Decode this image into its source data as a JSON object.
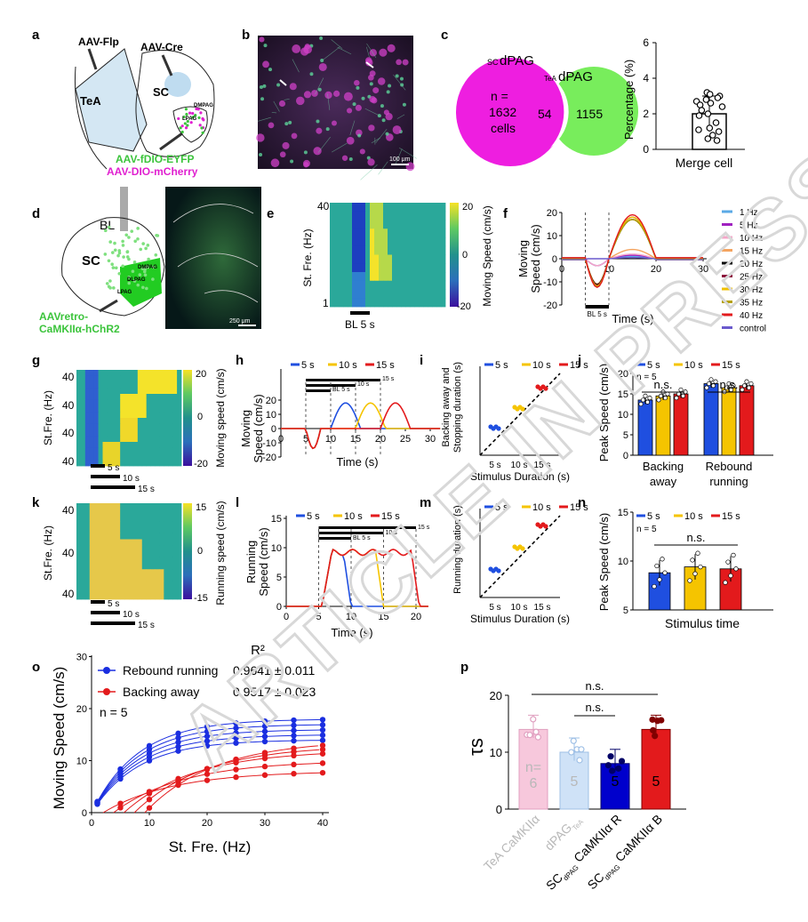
{
  "panels": {
    "a": {
      "label": "a",
      "flp": "AAV-Flp",
      "cre": "AAV-Cre",
      "tea": "TeA",
      "sc": "SC",
      "dmpag": "DMPAG",
      "lpag": "LPAG",
      "eyfp": "AAV-fDIO-EYFP",
      "mcherry": "AAV-DIO-mCherry"
    },
    "b": {
      "label": "b",
      "scale": "100 μm"
    },
    "c": {
      "label": "c",
      "sc_sub": "SC",
      "sc_name": "dPAG",
      "tea_sub": "TeA",
      "tea_name": "dPAG",
      "n_line1": "n =",
      "n_line2": "1632",
      "n_line3": "cells",
      "overlap": "54",
      "right_count": "1155",
      "ylabel": "Percentage (%)",
      "xlabel": "Merge cell",
      "yticks": [
        "0",
        "2",
        "4",
        "6"
      ],
      "bar_mean": 2.0,
      "bar_sd": 1.0,
      "ymax": 6,
      "dots": [
        3.2,
        3.0,
        3.1,
        2.9,
        2.6,
        2.8,
        2.7,
        2.5,
        2.4,
        2.0,
        1.9,
        1.5,
        1.2,
        1.0,
        1.1,
        0.8,
        0.5,
        0.6,
        2.2
      ]
    },
    "d": {
      "label": "d",
      "bl": "BL",
      "sc": "SC",
      "dmpag": "DMPAG",
      "dlpag": "DLPAG",
      "lpag": "LPAG",
      "virus1": "AAVretro-",
      "virus2": "CaMKIIα-hChR2",
      "scale": "250 μm"
    },
    "e": {
      "label": "e",
      "top": "40",
      "bottom": "1",
      "ylabel": "St. Fre. (Hz)",
      "stim": "BL 5 s",
      "cbar_label": "Moving Speed (cm/s)",
      "cbar_ticks": [
        "20",
        "0",
        "-20"
      ]
    },
    "f": {
      "label": "f",
      "ylabel1": "Moving",
      "ylabel2": "Speed (cm/s)",
      "xlabel": "Time (s)",
      "stim": "BL 5 s",
      "yticks": [
        "20",
        "10",
        "0",
        "-10",
        "-20"
      ],
      "xticks": [
        "0",
        "10",
        "20",
        "30"
      ],
      "legend": [
        {
          "name": "1 Hz",
          "color": "#5aa9e6"
        },
        {
          "name": "5 Hz",
          "color": "#a020c0"
        },
        {
          "name": "10 Hz",
          "color": "#f4a6c8"
        },
        {
          "name": "15 Hz",
          "color": "#f4a460"
        },
        {
          "name": "20 Hz",
          "color": "#000000"
        },
        {
          "name": "25 Hz",
          "color": "#8b0a3a"
        },
        {
          "name": "30 Hz",
          "color": "#f0c000"
        },
        {
          "name": "35 Hz",
          "color": "#b5a000"
        },
        {
          "name": "40 Hz",
          "color": "#e31a1c"
        },
        {
          "name": "control",
          "color": "#6a5acd"
        }
      ]
    },
    "g": {
      "label": "g",
      "rows": [
        "40",
        "40",
        "40",
        "40"
      ],
      "ylabel": "St.Fre. (Hz)",
      "cbar_label": "Moving speed (cm/s)",
      "cbar_ticks": [
        "20",
        "0",
        "-20"
      ],
      "durations": [
        "5 s",
        "10 s",
        "15 s"
      ]
    },
    "h": {
      "label": "h",
      "legend": [
        "5 s",
        "10 s",
        "15 s"
      ],
      "ylabel1": "Moving",
      "ylabel2": "Speed (cm/s)",
      "xlabel": "Time (s)",
      "yticks": [
        "20",
        "10",
        "0",
        "-10",
        "-20"
      ],
      "xticks": [
        "0",
        "5",
        "10",
        "15",
        "20",
        "25",
        "30"
      ],
      "stim": "BL 5 s",
      "b10": "10 s",
      "b15": "15 s"
    },
    "i": {
      "label": "i",
      "legend": [
        "5 s",
        "10 s",
        "15 s"
      ],
      "ylabel1": "Backing away and",
      "ylabel2": "Stopping duration (s)",
      "xlabel": "Stimulus Duration (s)",
      "xticks": [
        "5 s",
        "10 s",
        "15 s"
      ]
    },
    "j": {
      "label": "j",
      "legend": [
        "5 s",
        "10 s",
        "15 s"
      ],
      "ylabel": "Peak Speed (cm/s)",
      "n": "n = 5",
      "ns": "n.s.",
      "yticks": [
        "0",
        "5",
        "10",
        "15",
        "20"
      ],
      "groups": [
        "Backing",
        "away",
        "Rebound",
        "running"
      ],
      "backing": [
        13.5,
        14.5,
        15.0
      ],
      "rebound": [
        17.5,
        16.5,
        17.0
      ]
    },
    "k": {
      "label": "k",
      "rows": [
        "40",
        "40",
        "40"
      ],
      "ylabel": "St.Fre. (Hz)",
      "cbar_label": "Running speed (cm/s)",
      "cbar_ticks": [
        "15",
        "0",
        "-15"
      ],
      "durations": [
        "5 s",
        "10 s",
        "15 s"
      ]
    },
    "l": {
      "label": "l",
      "legend": [
        "5 s",
        "10 s",
        "15 s"
      ],
      "ylabel1": "Running",
      "ylabel2": "Speed (cm/s)",
      "xlabel": "Time (s)",
      "yticks": [
        "15",
        "10",
        "5",
        "0"
      ],
      "xticks": [
        "0",
        "5",
        "10",
        "15",
        "20"
      ],
      "stim": "BL 5 s",
      "b10": "10 s",
      "b15": "15 s"
    },
    "m": {
      "label": "m",
      "legend": [
        "5 s",
        "10 s",
        "15 s"
      ],
      "ylabel": "Running duration (s)",
      "xlabel": "Stimulus Duration (s)",
      "xticks": [
        "5 s",
        "10 s",
        "15 s"
      ]
    },
    "n": {
      "label": "n",
      "legend": [
        "5 s",
        "10 s",
        "15 s"
      ],
      "ylabel": "Peak Speed (cm/s)",
      "n": "n = 5",
      "ns": "n.s.",
      "yticks": [
        "5",
        "10",
        "15"
      ],
      "xlabel": "Stimulus time",
      "values": [
        8.8,
        9.4,
        9.2
      ]
    },
    "o": {
      "label": "o",
      "r2": "R²",
      "rebound_label": "Rebound running",
      "rebound_r2": "0.9641 ± 0.011",
      "backing_label": "Backing away",
      "backing_r2": "0.9517 ± 0.023",
      "n": "n = 5",
      "ylabel": "Moving Speed (cm/s)",
      "xlabel": "St. Fre. (Hz)",
      "yticks": [
        "0",
        "10",
        "20",
        "30"
      ],
      "xticks": [
        "0",
        "10",
        "20",
        "30",
        "40"
      ]
    },
    "p": {
      "label": "p",
      "ns": "n.s.",
      "ylabel": "τs",
      "yticks": [
        "0",
        "10",
        "20"
      ],
      "bars": [
        {
          "value": 14.0,
          "n": "n=\n6",
          "color": "#f7c8dc",
          "edge": "#e0a0c0"
        },
        {
          "value": 10.0,
          "n": "5",
          "color": "#cfe2f7",
          "edge": "#9fc0e6"
        },
        {
          "value": 8.0,
          "n": "5",
          "color": "#0000cc",
          "edge": "#000066"
        },
        {
          "value": 14.0,
          "n": "5",
          "color": "#e31a1c",
          "edge": "#800000"
        }
      ],
      "xlabels": [
        {
          "main": "TeA",
          "rest": "CaMKIIα",
          "sub": ""
        },
        {
          "main": "dPAG",
          "rest": "",
          "sub": "TeA"
        },
        {
          "main": "SC",
          "rest": "CaMKIIα R",
          "sub": "dPAG"
        },
        {
          "main": "SC",
          "rest": "CaMKIIα B",
          "sub": "dPAG"
        }
      ]
    }
  },
  "watermark": "ARTICLE IN PRESS"
}
